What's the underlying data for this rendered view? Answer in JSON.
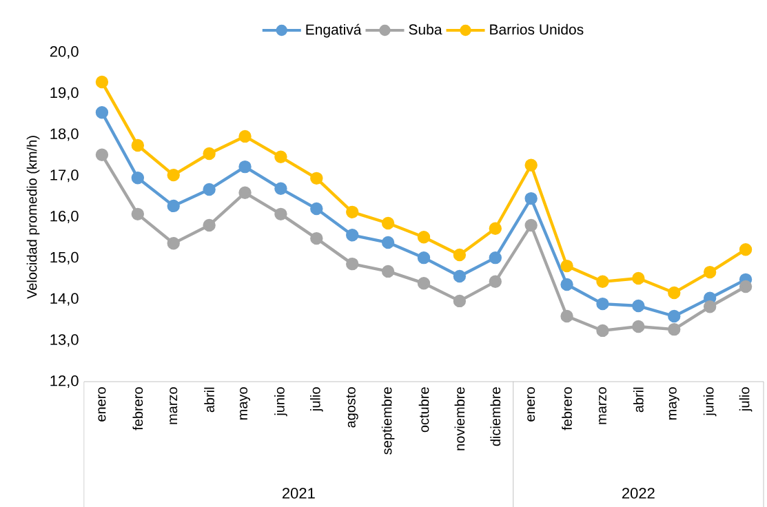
{
  "chart_data": {
    "type": "line",
    "ylabel": "Velocidad promedio (km/h)",
    "categories": [
      "enero",
      "febrero",
      "marzo",
      "abril",
      "mayo",
      "junio",
      "julio",
      "agosto",
      "septiembre",
      "octubre",
      "noviembre",
      "diciembre",
      "enero",
      "febrero",
      "marzo",
      "abril",
      "mayo",
      "junio",
      "julio"
    ],
    "series": [
      {
        "name": "Engativá",
        "color": "#5b9bd5",
        "values": [
          18.54,
          16.95,
          16.27,
          16.67,
          17.22,
          16.69,
          16.2,
          15.56,
          15.38,
          15.01,
          14.56,
          15.01,
          16.45,
          14.36,
          13.89,
          13.84,
          13.59,
          14.03,
          14.48
        ]
      },
      {
        "name": "Suba",
        "color": "#a5a5a5",
        "values": [
          17.51,
          16.07,
          15.36,
          15.8,
          16.59,
          16.07,
          15.48,
          14.86,
          14.68,
          14.39,
          13.96,
          14.43,
          15.8,
          13.59,
          13.24,
          13.34,
          13.27,
          13.82,
          14.31
        ]
      },
      {
        "name": "Barrios Unidos",
        "color": "#ffc000",
        "values": [
          19.28,
          17.74,
          17.02,
          17.54,
          17.96,
          17.46,
          16.94,
          16.12,
          15.85,
          15.51,
          15.08,
          15.72,
          17.26,
          14.81,
          14.43,
          14.51,
          14.16,
          14.66,
          15.21
        ]
      }
    ],
    "annotations": [
      "2021",
      "2022"
    ],
    "ylim": [
      12,
      20
    ],
    "yticks": [
      {
        "value": 12,
        "label": "12,0"
      },
      {
        "value": 13,
        "label": "13,0"
      },
      {
        "value": 14,
        "label": "14,0"
      },
      {
        "value": 15,
        "label": "15,0"
      },
      {
        "value": 16,
        "label": "16,0"
      },
      {
        "value": 17,
        "label": "17,0"
      },
      {
        "value": 18,
        "label": "18,0"
      },
      {
        "value": 19,
        "label": "19,0"
      },
      {
        "value": 20,
        "label": "20,0"
      }
    ],
    "grid": false,
    "legend": "top",
    "marker": "circle",
    "line_style": "solid"
  }
}
